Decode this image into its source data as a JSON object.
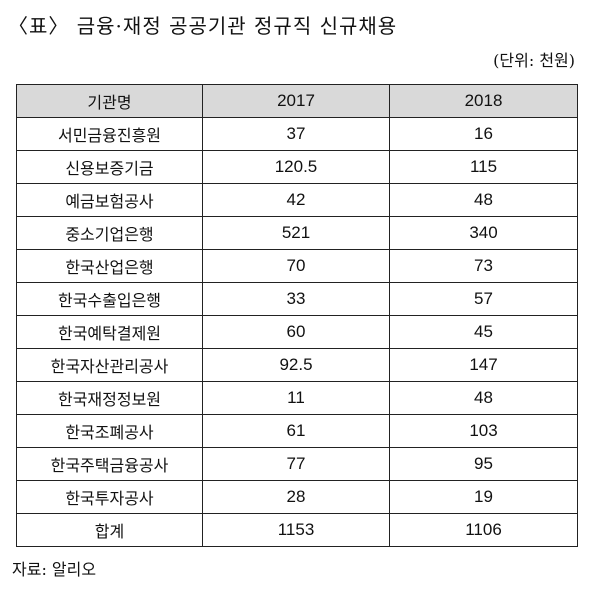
{
  "title": "〈표〉 금융·재정 공공기관 정규직 신규채용",
  "unit": "(단위: 천원)",
  "table": {
    "headers": [
      "기관명",
      "2017",
      "2018"
    ],
    "rows": [
      [
        "서민금융진흥원",
        "37",
        "16"
      ],
      [
        "신용보증기금",
        "120.5",
        "115"
      ],
      [
        "예금보험공사",
        "42",
        "48"
      ],
      [
        "중소기업은행",
        "521",
        "340"
      ],
      [
        "한국산업은행",
        "70",
        "73"
      ],
      [
        "한국수출입은행",
        "33",
        "57"
      ],
      [
        "한국예탁결제원",
        "60",
        "45"
      ],
      [
        "한국자산관리공사",
        "92.5",
        "147"
      ],
      [
        "한국재정정보원",
        "11",
        "48"
      ],
      [
        "한국조폐공사",
        "61",
        "103"
      ],
      [
        "한국주택금융공사",
        "77",
        "95"
      ],
      [
        "한국투자공사",
        "28",
        "19"
      ],
      [
        "합계",
        "1153",
        "1106"
      ]
    ]
  },
  "source": "자료: 알리오"
}
